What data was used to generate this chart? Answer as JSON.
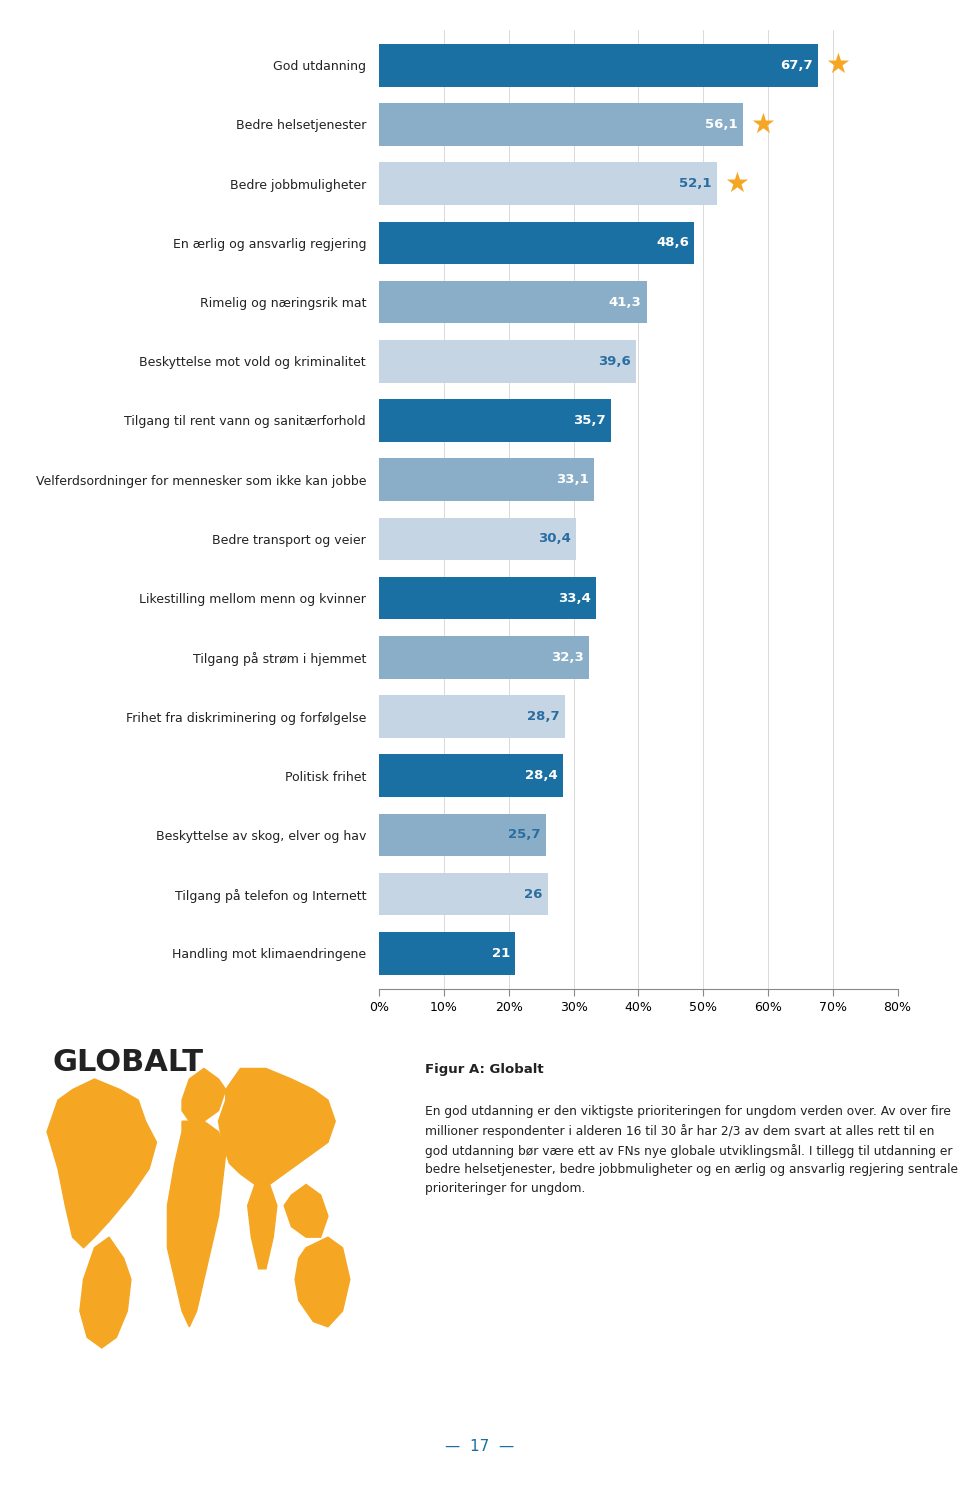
{
  "categories": [
    "God utdanning",
    "Bedre helsetjenester",
    "Bedre jobbmuligheter",
    "En ærlig og ansvarlig regjering",
    "Rimelig og næringsrik mat",
    "Beskyttelse mot vold og kriminalitet",
    "Tilgang til rent vann og sanitærforhold",
    "Velferdsordninger for mennesker som ikke kan jobbe",
    "Bedre transport og veier",
    "Likestilling mellom menn og kvinner",
    "Tilgang på strøm i hjemmet",
    "Frihet fra diskriminering og forfølgelse",
    "Politisk frihet",
    "Beskyttelse av skog, elver og hav",
    "Tilgang på telefon og Internett",
    "Handling mot klimaendringene"
  ],
  "values": [
    67.7,
    56.1,
    52.1,
    48.6,
    41.3,
    39.6,
    35.7,
    33.1,
    30.4,
    33.4,
    32.3,
    28.7,
    28.4,
    25.7,
    26,
    21
  ],
  "bar_colors": [
    "#1a6fa3",
    "#8aaec8",
    "#c5d5e4",
    "#1a6fa3",
    "#8aaec8",
    "#c5d5e4",
    "#1a6fa3",
    "#8aaec8",
    "#c5d5e4",
    "#1a6fa3",
    "#8aaec8",
    "#c5d5e4",
    "#1a6fa3",
    "#8aaec8",
    "#c5d5e4",
    "#1a6fa3"
  ],
  "value_text_colors": [
    "#ffffff",
    "#ffffff",
    "#2a6da0",
    "#ffffff",
    "#ffffff",
    "#2a6da0",
    "#ffffff",
    "#ffffff",
    "#2a6da0",
    "#ffffff",
    "#ffffff",
    "#2a6da0",
    "#ffffff",
    "#2a6da0",
    "#2a6da0",
    "#ffffff"
  ],
  "star_indices": [
    0,
    1,
    2
  ],
  "star_color": "#f5a623",
  "xlabel_ticks": [
    "0%",
    "10%",
    "20%",
    "30%",
    "40%",
    "50%",
    "60%",
    "70%",
    "80%"
  ],
  "xlabel_values": [
    0,
    10,
    20,
    30,
    40,
    50,
    60,
    70,
    80
  ],
  "xlim": [
    0,
    80
  ],
  "background_color": "#ffffff",
  "bar_height": 0.72,
  "globalt_title": "GLOBALT",
  "figur_title": "Figur A: Globalt",
  "figur_text": "En god utdanning er den viktigste prioriteringen for ungdom verden over. Av over fire millioner respondenter i alderen 16 til 30 år har 2/3 av dem svart at alles rett til en god utdanning bør være ett av FNs nye globale utviklingsmål. I tillegg til utdanning er bedre helsetjenester, bedre jobbmuligheter og en ærlig og ansvarlig regjering sentrale prioriteringer for ungdom.",
  "info_box_color": "#dde5ee",
  "page_number": "17",
  "orange_color": "#f5a623"
}
